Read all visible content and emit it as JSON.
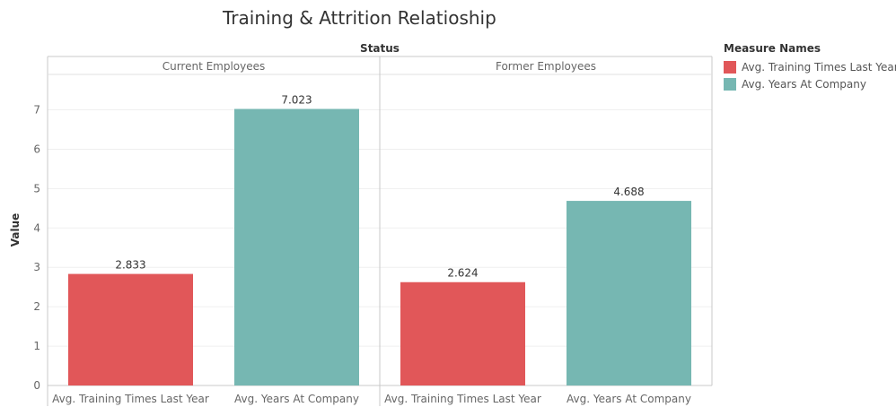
{
  "chart_data": {
    "type": "bar",
    "title": "Training & Attrition Relatioship",
    "column_header": "Status",
    "ylabel": "Value",
    "ylim": [
      0,
      7.9
    ],
    "yticks": [
      0,
      1,
      2,
      3,
      4,
      5,
      6,
      7
    ],
    "panels": [
      {
        "name": "Current Employees",
        "categories": [
          "Avg. Training Times Last Year",
          "Avg. Years At Company"
        ],
        "values": [
          2.833,
          7.023
        ],
        "labels": [
          "2.833",
          "7.023"
        ]
      },
      {
        "name": "Former Employees",
        "categories": [
          "Avg. Training Times Last Year",
          "Avg. Years At Company"
        ],
        "values": [
          2.624,
          4.688
        ],
        "labels": [
          "2.624",
          "4.688"
        ]
      }
    ],
    "legend": {
      "title": "Measure Names",
      "placement": "right",
      "items": [
        {
          "label": "Avg. Training Times Last Year",
          "color": "#e15759"
        },
        {
          "label": "Avg. Years At Company",
          "color": "#76b7b2"
        }
      ]
    },
    "grid": true
  }
}
